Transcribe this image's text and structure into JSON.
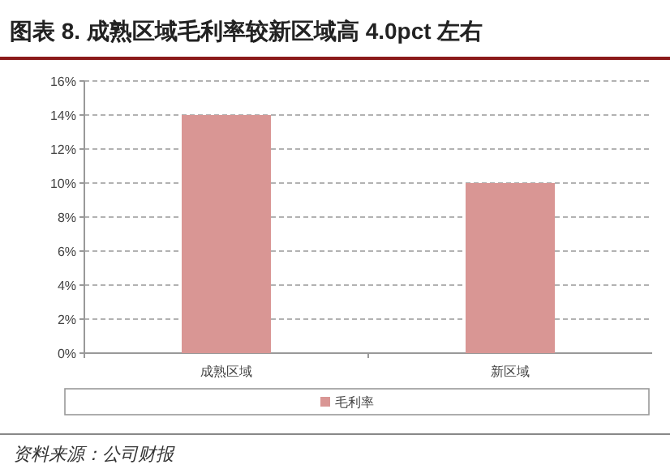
{
  "chart_data": {
    "type": "bar",
    "title": "图表 8. 成熟区域毛利率较新区域高 4.0pct 左右",
    "categories": [
      "成熟区域",
      "新区域"
    ],
    "series": [
      {
        "name": "毛利率",
        "color": "#d99694",
        "values": [
          14,
          10
        ]
      }
    ],
    "ylim": [
      0,
      16
    ],
    "yticks": [
      {
        "value": 0,
        "label": "0%"
      },
      {
        "value": 2,
        "label": "2%"
      },
      {
        "value": 4,
        "label": "4%"
      },
      {
        "value": 6,
        "label": "6%"
      },
      {
        "value": 8,
        "label": "8%"
      },
      {
        "value": 10,
        "label": "10%"
      },
      {
        "value": 12,
        "label": "12%"
      },
      {
        "value": 14,
        "label": "14%"
      },
      {
        "value": 16,
        "label": "16%"
      }
    ],
    "grid": "y",
    "legend": "bottom",
    "annotations": [
      "资料来源：公司财报"
    ]
  }
}
